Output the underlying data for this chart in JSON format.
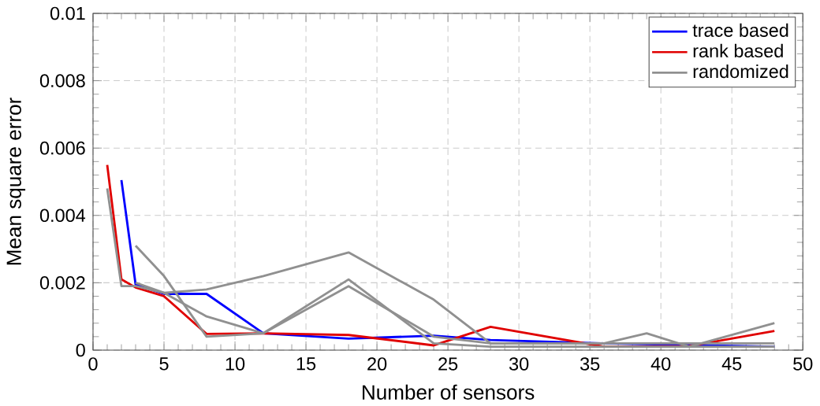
{
  "chart_data": {
    "type": "line",
    "xlabel": "Number of sensors",
    "ylabel": "Mean square error",
    "xlim": [
      0,
      50
    ],
    "xticks": [
      0,
      5,
      10,
      15,
      20,
      25,
      30,
      35,
      40,
      45,
      50
    ],
    "ylim": [
      0,
      0.01
    ],
    "yticks": [
      {
        "value": 0,
        "label": "0"
      },
      {
        "value": 0.002,
        "label": "0.002"
      },
      {
        "value": 0.004,
        "label": "0.004"
      },
      {
        "value": 0.006,
        "label": "0.006"
      },
      {
        "value": 0.008,
        "label": "0.008"
      },
      {
        "value": 0.01,
        "label": "0.01"
      }
    ],
    "grid": true,
    "legend": "top right",
    "line_style": "solid",
    "marker": "none",
    "series": [
      {
        "name": "trace based",
        "color": "#0000ff",
        "x": [
          2,
          3,
          5,
          8,
          12,
          18,
          24,
          28,
          36,
          42,
          48
        ],
        "values": [
          0.00505,
          0.00195,
          0.00167,
          0.00167,
          0.0005,
          0.00034,
          0.00043,
          0.0003,
          0.0002,
          0.00015,
          0.0001
        ]
      },
      {
        "name": "rank based",
        "color": "#e00000",
        "x": [
          1,
          2,
          3,
          5,
          8,
          12,
          18,
          24,
          28,
          36,
          42,
          48
        ],
        "values": [
          0.0055,
          0.0021,
          0.00186,
          0.0016,
          0.00048,
          0.0005,
          0.00045,
          0.00014,
          0.00069,
          0.0001,
          0.00012,
          0.00057
        ]
      },
      {
        "name": "randomized",
        "color": "#909090",
        "x": [
          1,
          2,
          3,
          5,
          8,
          12,
          18,
          24,
          28,
          36,
          39,
          42,
          48
        ],
        "values": [
          0.0048,
          0.0019,
          0.0019,
          0.0017,
          0.0018,
          0.0022,
          0.0029,
          0.0015,
          0.0002,
          0.0002,
          0.0005,
          0.0001,
          0.0008
        ]
      },
      {
        "color": "#909090",
        "x": [
          3,
          5,
          8,
          12,
          18,
          24,
          28,
          36,
          42,
          48
        ],
        "values": [
          0.0031,
          0.0022,
          0.0004,
          0.0005,
          0.0021,
          0.0002,
          0.0001,
          0.0001,
          0.0001,
          0.0001
        ]
      },
      {
        "color": "#909090",
        "x": [
          3,
          5,
          8,
          12,
          18,
          24,
          28,
          36,
          42,
          48
        ],
        "values": [
          0.002,
          0.0017,
          0.001,
          0.0005,
          0.0019,
          0.0004,
          0.0002,
          0.0002,
          0.0002,
          0.0002
        ]
      }
    ]
  }
}
